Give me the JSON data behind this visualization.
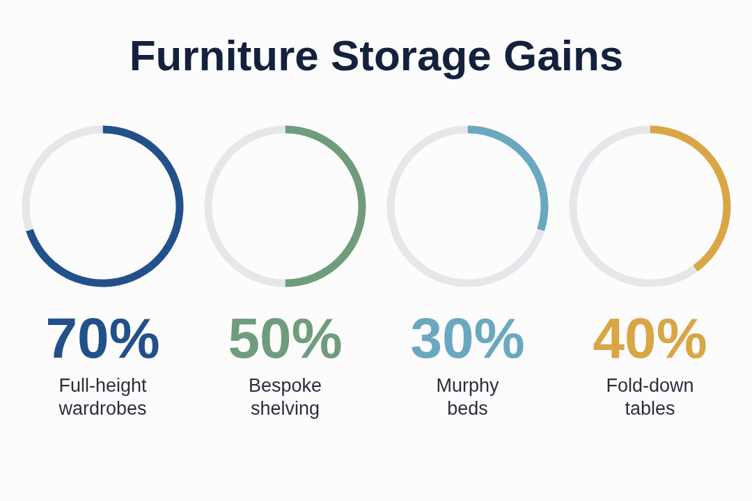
{
  "chart_data": [
    {
      "type": "other",
      "title": "Furniture Storage Gains"
    },
    {
      "type": "donut",
      "title": "70%",
      "subtitle": "Full-height wardrobes",
      "categories": [
        null,
        null
      ],
      "values": [
        70,
        30
      ],
      "colors": [
        "#22508a",
        "#e5e7ea"
      ]
    },
    {
      "type": "donut",
      "title": "50%",
      "subtitle": "Bespoke shelving",
      "categories": [
        null,
        null
      ],
      "values": [
        50,
        50
      ],
      "colors": [
        "#6f9c7c",
        "#e5e7ea"
      ]
    },
    {
      "type": "donut",
      "title": "30%",
      "subtitle": "Murphy beds",
      "categories": [
        null,
        null
      ],
      "values": [
        30,
        70
      ],
      "colors": [
        "#6aa8bf",
        "#e5e7ea"
      ]
    },
    {
      "type": "donut",
      "title": "40%",
      "subtitle": "Fold-down tables",
      "categories": [
        null,
        null
      ],
      "values": [
        40,
        60
      ],
      "colors": [
        "#d9a646",
        "#e5e7ea"
      ]
    }
  ]
}
